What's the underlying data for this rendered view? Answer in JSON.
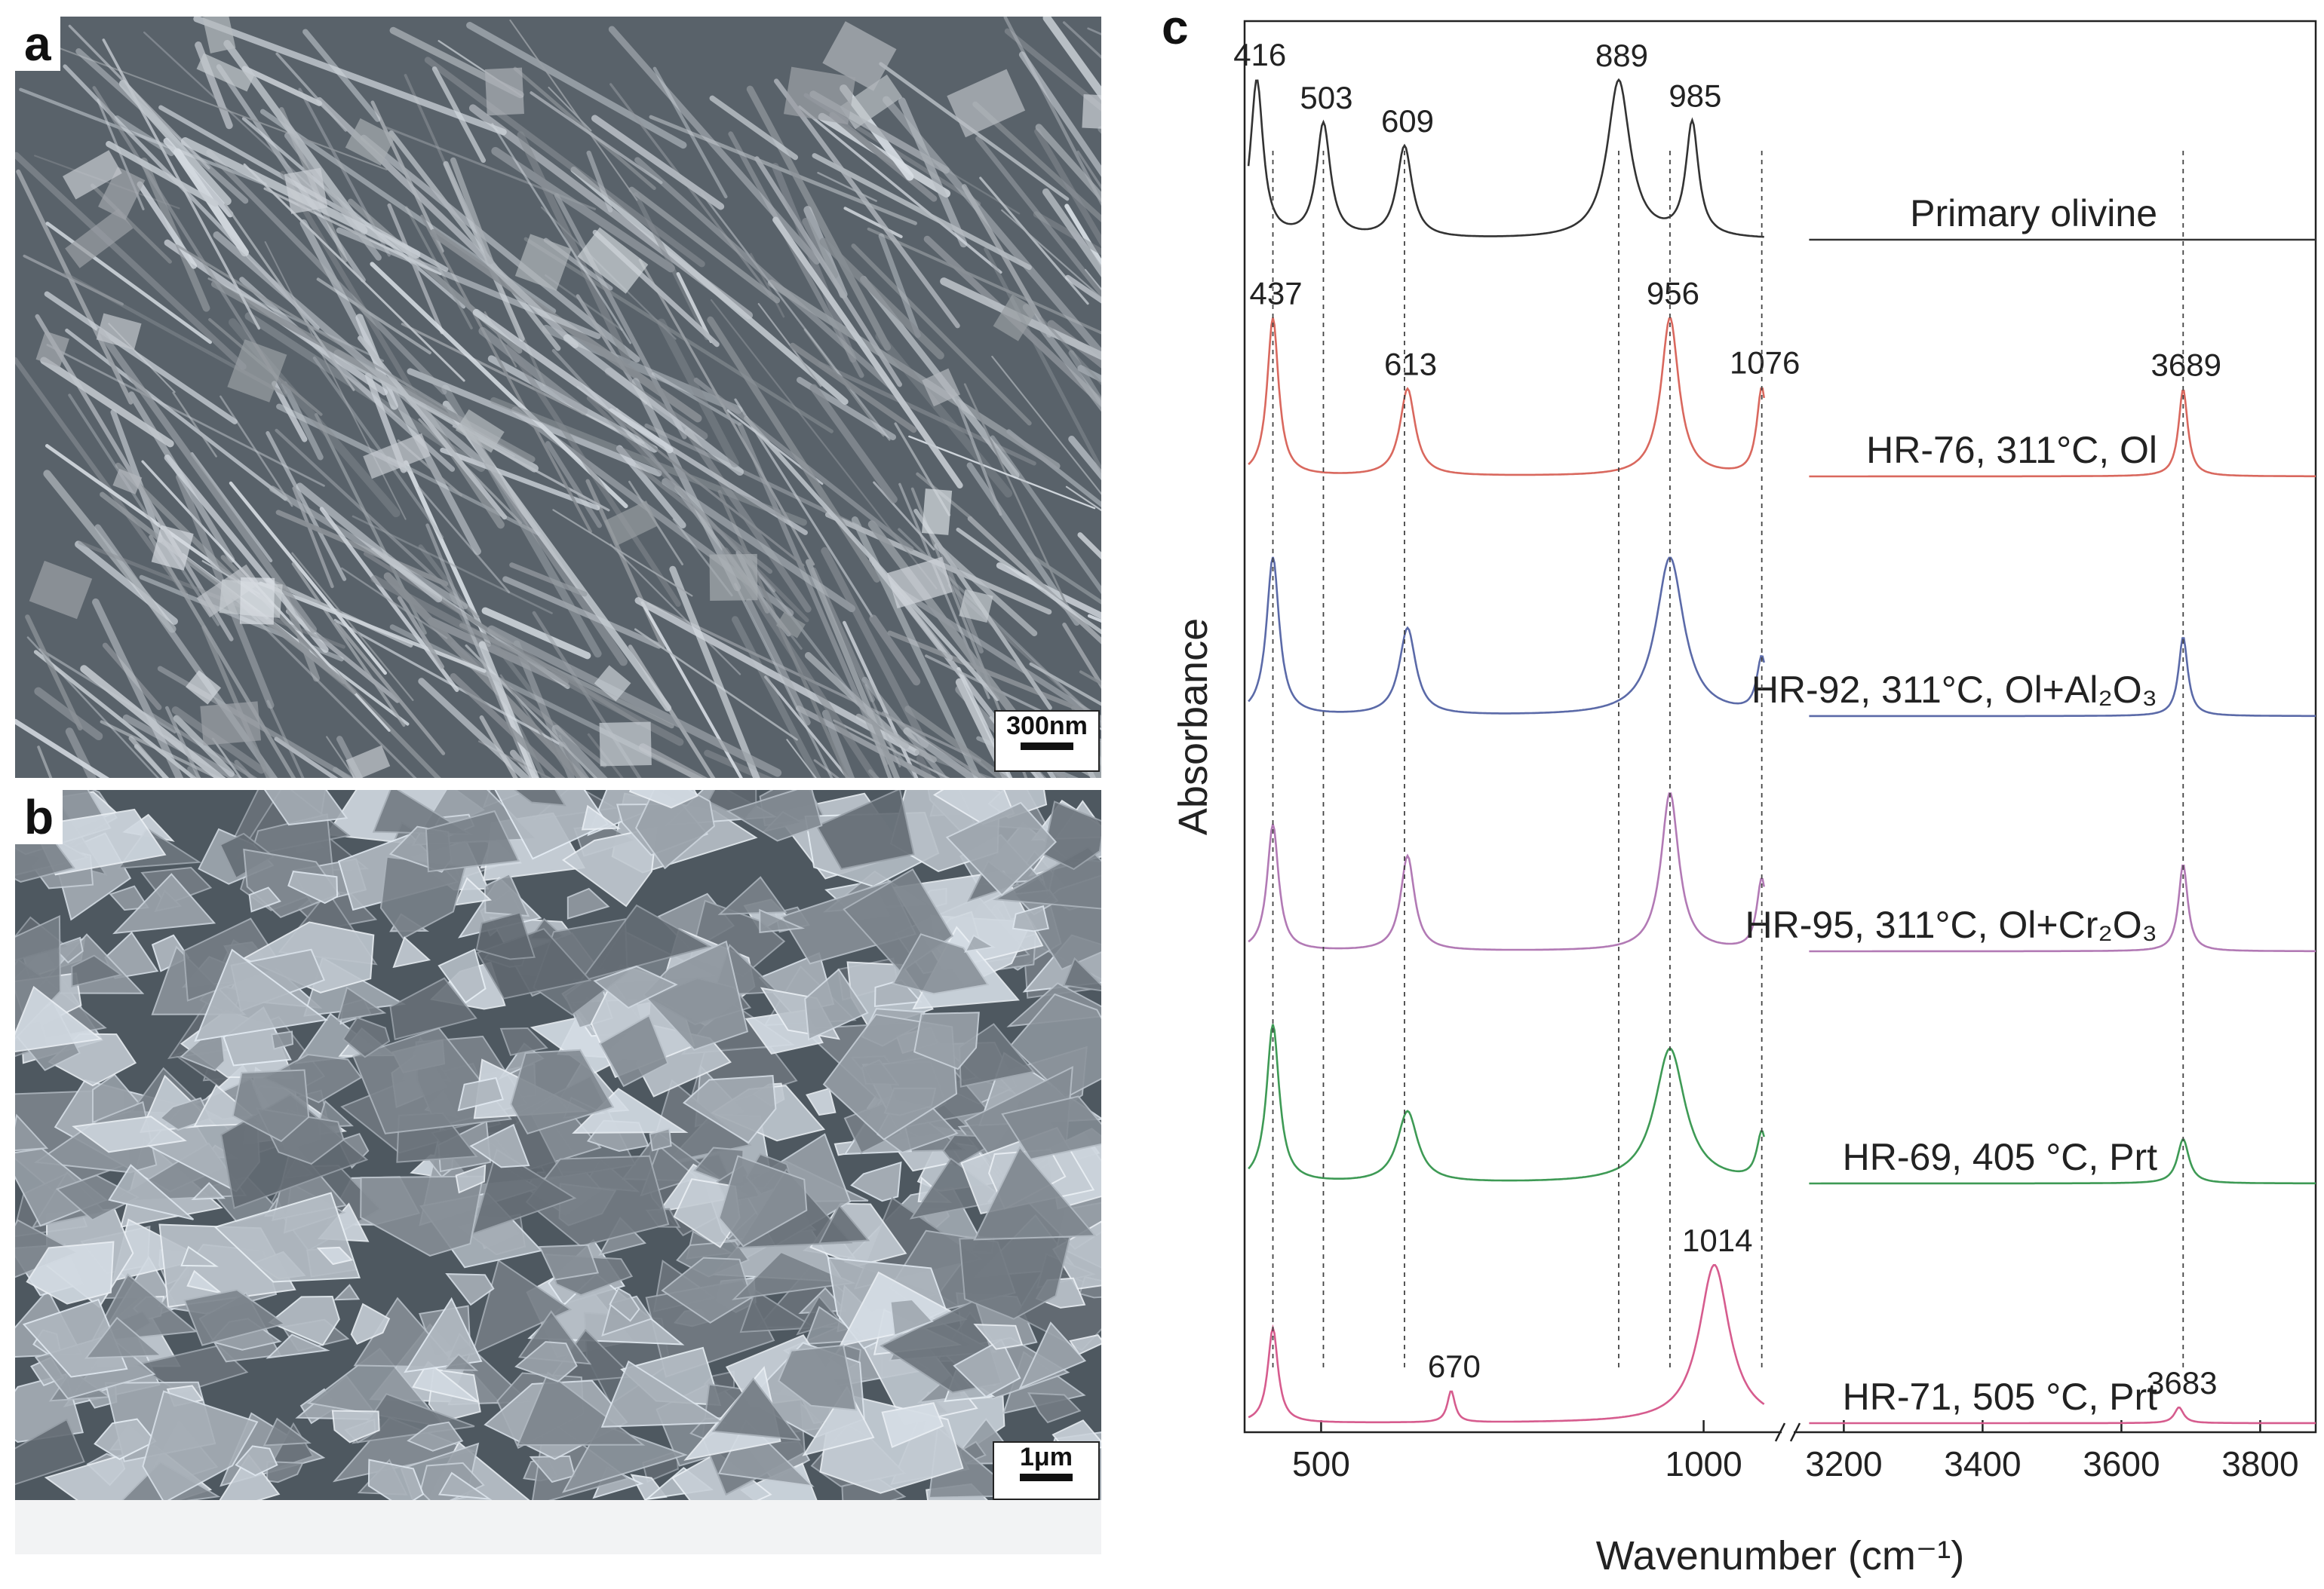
{
  "panels": {
    "a": {
      "letter": "a",
      "scale_label": "300nm",
      "texture": "needle-fibers"
    },
    "b": {
      "letter": "b",
      "scale_label": "1μm",
      "texture": "platy-flakes"
    },
    "c": {
      "letter": "c"
    }
  },
  "chart_data": {
    "type": "line",
    "xlabel": "Wavenumber (cm⁻¹)",
    "ylabel": "Absorbance",
    "x_segments": [
      {
        "range": [
          400,
          1100
        ],
        "ticks": [
          500,
          1000
        ]
      },
      {
        "range": [
          3130,
          3880
        ],
        "ticks": [
          3200,
          3400,
          3600,
          3800
        ]
      }
    ],
    "axis_break": "//",
    "y_ticks": "none",
    "grid": false,
    "legend": "none",
    "series": [
      {
        "name": "Primary olivine",
        "color": "#333333",
        "peaks": [
          {
            "x": 416,
            "height": 1.0,
            "width": 10,
            "label": "416"
          },
          {
            "x": 503,
            "height": 0.72,
            "width": 11,
            "label": "503"
          },
          {
            "x": 609,
            "height": 0.58,
            "width": 12,
            "label": "609"
          },
          {
            "x": 889,
            "height": 1.0,
            "width": 18,
            "label": "889"
          },
          {
            "x": 985,
            "height": 0.72,
            "width": 10,
            "label": "985"
          }
        ]
      },
      {
        "name": "HR-76, 311°C, Ol",
        "color": "#d9685e",
        "peaks": [
          {
            "x": 437,
            "height": 1.0,
            "width": 9,
            "label": "437"
          },
          {
            "x": 613,
            "height": 0.55,
            "width": 12,
            "label": "613"
          },
          {
            "x": 956,
            "height": 1.0,
            "width": 14,
            "label": "956"
          },
          {
            "x": 1076,
            "height": 0.55,
            "width": 8,
            "label": "1076"
          },
          {
            "x": 3689,
            "height": 0.55,
            "width": 8,
            "label": "3689"
          }
        ]
      },
      {
        "name": "HR-92, 311°C, Ol+Al₂O₃",
        "color": "#5b6aa8",
        "peaks": [
          {
            "x": 437,
            "height": 1.0,
            "width": 10
          },
          {
            "x": 613,
            "height": 0.55,
            "width": 13
          },
          {
            "x": 956,
            "height": 1.0,
            "width": 22
          },
          {
            "x": 1076,
            "height": 0.35,
            "width": 8
          },
          {
            "x": 3689,
            "height": 0.5,
            "width": 8
          }
        ]
      },
      {
        "name": "HR-95, 311°C, Ol+Cr₂O₃",
        "color": "#b27ab5",
        "peaks": [
          {
            "x": 437,
            "height": 0.8,
            "width": 9
          },
          {
            "x": 613,
            "height": 0.6,
            "width": 11
          },
          {
            "x": 956,
            "height": 1.0,
            "width": 14
          },
          {
            "x": 1076,
            "height": 0.45,
            "width": 8
          },
          {
            "x": 3689,
            "height": 0.55,
            "width": 8
          }
        ]
      },
      {
        "name": "HR-69, 405 °C, Prt",
        "color": "#3e9a55",
        "peaks": [
          {
            "x": 437,
            "height": 1.0,
            "width": 10
          },
          {
            "x": 613,
            "height": 0.45,
            "width": 16
          },
          {
            "x": 956,
            "height": 0.85,
            "width": 24
          },
          {
            "x": 1076,
            "height": 0.3,
            "width": 8
          },
          {
            "x": 3689,
            "height": 0.28,
            "width": 10
          }
        ]
      },
      {
        "name": "HR-71, 505 °C, Prt",
        "color": "#d65c8e",
        "peaks": [
          {
            "x": 437,
            "height": 0.6,
            "width": 8
          },
          {
            "x": 670,
            "height": 0.2,
            "width": 6,
            "label": "670"
          },
          {
            "x": 1014,
            "height": 1.0,
            "width": 24,
            "label": "1014"
          },
          {
            "x": 3683,
            "height": 0.1,
            "width": 8,
            "label": "3683"
          }
        ]
      }
    ],
    "reference_lines": [
      437,
      503,
      609,
      889,
      956,
      1076,
      3689
    ]
  }
}
